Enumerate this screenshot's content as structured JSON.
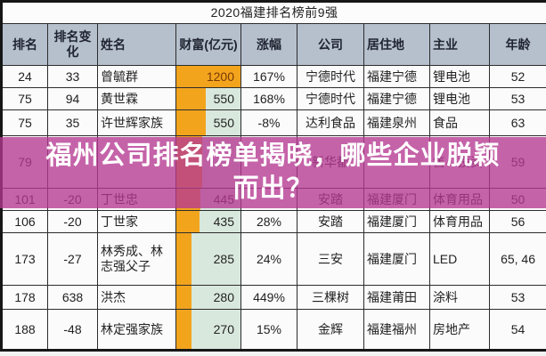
{
  "title": "2020福建排名榜前9强",
  "banner": {
    "line1": "福州公司排名榜单揭晓，哪些企业脱颖",
    "line2": "而出？",
    "bg_color": "#b638920",
    "overlay_color": "#c55fa8",
    "text_color": "#ffffff"
  },
  "table": {
    "headers": {
      "rank": "排名",
      "change": "排名变化",
      "name": "姓名",
      "wealth": "财富(亿元)",
      "pct": "涨幅",
      "company": "公司",
      "residence": "居住地",
      "business": "主业",
      "age": "年龄"
    },
    "colors": {
      "header_bg": "#b6c0cd",
      "bar_orange": "#f2a41d",
      "bar_track_green": "#d9e8dd",
      "top_value_text": "#7a3a05",
      "border": "#2c2c2c"
    },
    "max_wealth": 1200,
    "rows": [
      {
        "rank": "24",
        "change": "33",
        "name": "曾毓群",
        "wealth": "1200",
        "bar_pct": 100,
        "pct": "167%",
        "company": "宁德时代",
        "residence": "福建宁德",
        "business": "锂电池",
        "age": "52"
      },
      {
        "rank": "75",
        "change": "94",
        "name": "黄世霖",
        "wealth": "550",
        "bar_pct": 46,
        "pct": "168%",
        "company": "宁德时代",
        "residence": "福建宁德",
        "business": "锂电池",
        "age": "53"
      },
      {
        "rank": "75",
        "change": "35",
        "name": "许世辉家族",
        "wealth": "550",
        "bar_pct": 46,
        "pct": "-8%",
        "company": "达利食品",
        "residence": "福建泉州",
        "business": "食品",
        "age": "63"
      },
      {
        "rank": "79",
        "change": "",
        "name": "",
        "wealth": "",
        "bar_pct": 40,
        "pct": "",
        "company": "新华都",
        "residence": "",
        "business": "售、投资",
        "age": "59"
      },
      {
        "rank": "101",
        "change": "-20",
        "name": "丁世忠",
        "wealth": "445",
        "bar_pct": 37,
        "pct": "",
        "company": "安踏",
        "residence": "福建厦门",
        "business": "体育用品",
        "age": "50"
      },
      {
        "rank": "106",
        "change": "-20",
        "name": "丁世家",
        "wealth": "435",
        "bar_pct": 36,
        "pct": "28%",
        "company": "安踏",
        "residence": "福建厦门",
        "business": "体育用品",
        "age": "56"
      },
      {
        "rank": "173",
        "change": "-27",
        "name": "林秀成、林志强父子",
        "wealth": "285",
        "bar_pct": 24,
        "pct": "24%",
        "company": "三安",
        "residence": "福建厦门",
        "business": "LED",
        "age": "65, 46"
      },
      {
        "rank": "178",
        "change": "638",
        "name": "洪杰",
        "wealth": "280",
        "bar_pct": 23,
        "pct": "449%",
        "company": "三棵树",
        "residence": "福建莆田",
        "business": "涂料",
        "age": "53"
      },
      {
        "rank": "188",
        "change": "-48",
        "name": "林定强家族",
        "wealth": "270",
        "bar_pct": 23,
        "pct": "15%",
        "company": "金辉",
        "residence": "福建福州",
        "business": "房地产",
        "age": "54"
      }
    ]
  }
}
